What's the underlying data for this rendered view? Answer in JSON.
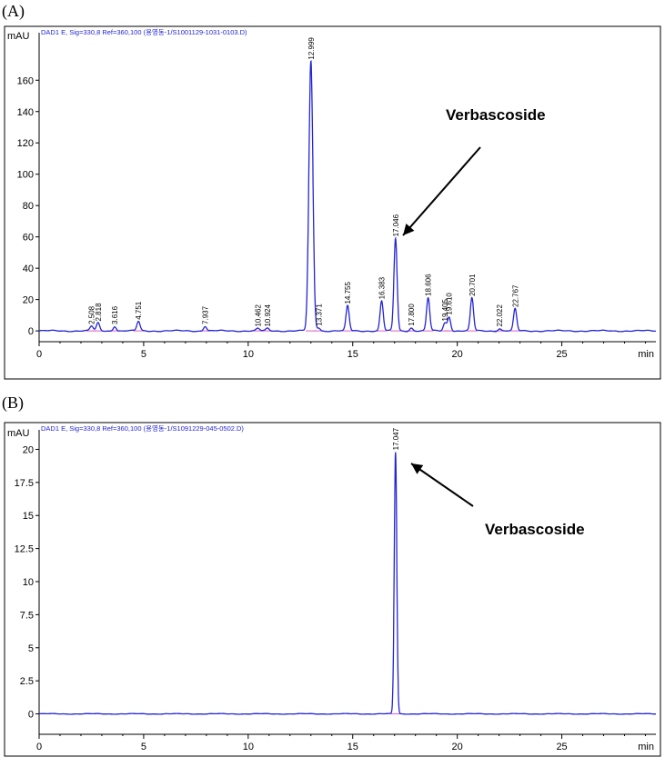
{
  "chart_data": [
    {
      "panel": "(A)",
      "type": "line",
      "header": "DAD1 E, Sig=330,8 Ref=360,100 (용영동-1/S1001129-1031-0103.D)",
      "ylabel": "mAU",
      "xlabel": "min",
      "xlim": [
        0,
        29.5
      ],
      "ylim": [
        -4,
        188
      ],
      "xticks": [
        0,
        5,
        10,
        15,
        20,
        25
      ],
      "yticks": [
        0,
        20,
        40,
        60,
        80,
        100,
        120,
        140,
        160
      ],
      "line_color": "#2424d6",
      "peaks": [
        {
          "rt": 2.508,
          "height": 3,
          "label": "2.508"
        },
        {
          "rt": 2.818,
          "height": 5,
          "label": "2.818"
        },
        {
          "rt": 3.616,
          "height": 3,
          "label": "3.616"
        },
        {
          "rt": 4.751,
          "height": 6,
          "label": "4.751"
        },
        {
          "rt": 7.937,
          "height": 3,
          "label": "7.937"
        },
        {
          "rt": 10.462,
          "height": 1.5,
          "label": "10.462"
        },
        {
          "rt": 10.924,
          "height": 1.5,
          "label": "10.924"
        },
        {
          "rt": 12.999,
          "height": 172,
          "label": "12.999"
        },
        {
          "rt": 13.371,
          "height": 2,
          "label": "13.371"
        },
        {
          "rt": 14.755,
          "height": 16,
          "label": "14.755"
        },
        {
          "rt": 16.383,
          "height": 19,
          "label": "16.383"
        },
        {
          "rt": 17.046,
          "height": 59,
          "label": "17.046"
        },
        {
          "rt": 17.8,
          "height": 2,
          "label": "17.800"
        },
        {
          "rt": 18.606,
          "height": 21,
          "label": "18.606"
        },
        {
          "rt": 19.405,
          "height": 5,
          "label": "19.405"
        },
        {
          "rt": 19.61,
          "height": 9,
          "label": "19.610"
        },
        {
          "rt": 20.701,
          "height": 21,
          "label": "20.701"
        },
        {
          "rt": 22.022,
          "height": 1.5,
          "label": "22.022"
        },
        {
          "rt": 22.767,
          "height": 14,
          "label": "22.767"
        }
      ],
      "annotation": {
        "text": "Verbascoside",
        "target_rt": 17.046
      }
    },
    {
      "panel": "(B)",
      "type": "line",
      "header": "DAD1 E, Sig=330,8 Ref=360,100 (용영동-1/S1091229-045-0502.D)",
      "ylabel": "mAU",
      "xlabel": "min",
      "xlim": [
        0,
        29.5
      ],
      "ylim": [
        -1.2,
        21.2
      ],
      "xticks": [
        0,
        5,
        10,
        15,
        20,
        25
      ],
      "yticks": [
        0,
        2.5,
        5,
        7.5,
        10,
        12.5,
        15,
        17.5,
        20
      ],
      "line_color": "#2424d6",
      "peaks": [
        {
          "rt": 17.047,
          "height": 19.8,
          "label": "17.047"
        }
      ],
      "annotation": {
        "text": "Verbascoside",
        "target_rt": 17.047
      }
    }
  ]
}
